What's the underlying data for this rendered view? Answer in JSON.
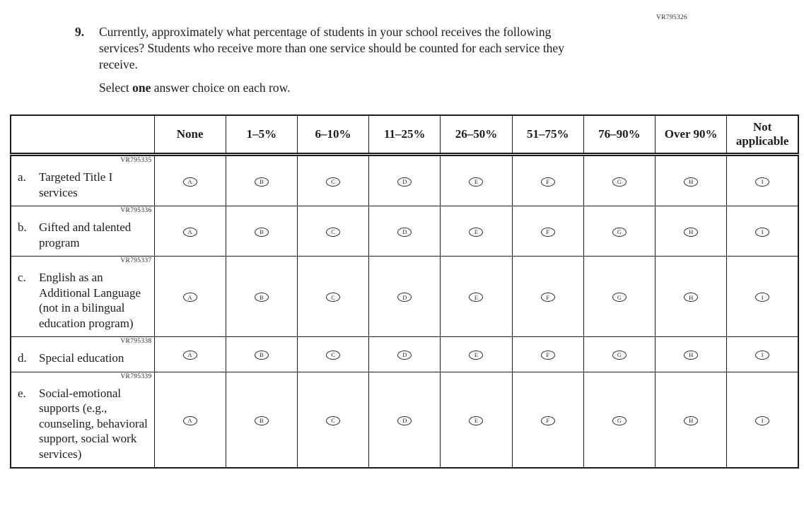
{
  "page": {
    "form_code": "VR795326"
  },
  "question": {
    "number": "9.",
    "text": "Currently, approximately what percentage of students in your school receives the following services? Students who receive more than one service should be counted for each service they receive.",
    "instruction_prefix": "Select ",
    "instruction_bold": "one",
    "instruction_suffix": " answer choice on each row."
  },
  "table": {
    "columns": [
      "None",
      "1–5%",
      "6–10%",
      "11–25%",
      "26–50%",
      "51–75%",
      "76–90%",
      "Over 90%",
      "Not applicable"
    ],
    "options": [
      "A",
      "B",
      "C",
      "D",
      "E",
      "F",
      "G",
      "H",
      "I"
    ],
    "rows": [
      {
        "vr_code": "VR795335",
        "letter": "a.",
        "label": "Targeted Title I services"
      },
      {
        "vr_code": "VR795336",
        "letter": "b.",
        "label": "Gifted and talented program"
      },
      {
        "vr_code": "VR795337",
        "letter": "c.",
        "label": "English as an Additional Language (not in a bilingual education program)"
      },
      {
        "vr_code": "VR795338",
        "letter": "d.",
        "label": "Special education"
      },
      {
        "vr_code": "VR795339",
        "letter": "e.",
        "label": "Social-emotional supports (e.g., counseling, behavioral support, social work services)"
      }
    ]
  }
}
